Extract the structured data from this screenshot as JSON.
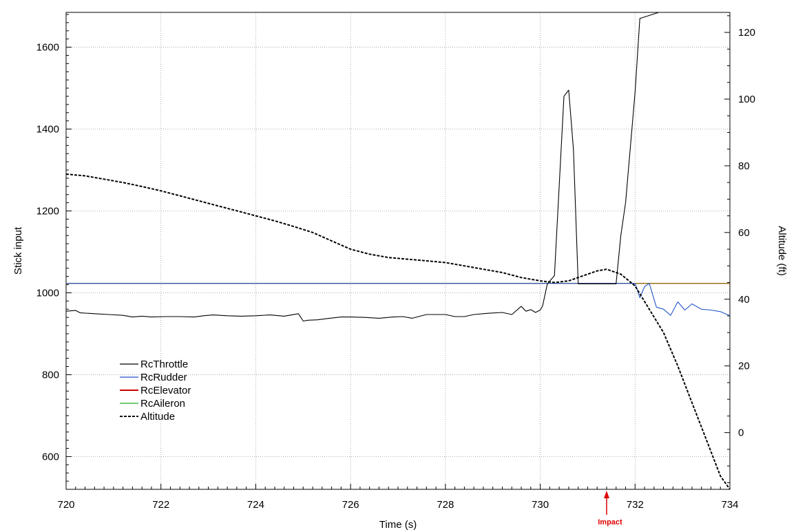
{
  "chart_data": {
    "type": "line",
    "x_axis": {
      "label": "Time (s)",
      "range": [
        720,
        734
      ],
      "ticks": [
        720,
        722,
        724,
        726,
        728,
        730,
        732,
        734
      ],
      "tick_labels": [
        "720",
        "722",
        "724",
        "726",
        "728",
        "730",
        "732",
        "734"
      ]
    },
    "y_left": {
      "label": "Stick input",
      "range": [
        520,
        1685
      ],
      "ticks": [
        600,
        800,
        1000,
        1200,
        1400,
        1600
      ],
      "tick_labels": [
        "600",
        "800",
        "1000",
        "1200",
        "1400",
        "1600"
      ]
    },
    "y_right": {
      "label": "Altitude (ft)",
      "range": [
        -17,
        126
      ],
      "ticks": [
        0,
        20,
        40,
        60,
        80,
        100,
        120
      ],
      "tick_labels": [
        "0",
        "20",
        "40",
        "60",
        "80",
        "100",
        "120"
      ]
    },
    "grid": true,
    "legend_position": "bottom-left",
    "series": [
      {
        "name": "RcThrottle",
        "axis": "left",
        "color": "#000000",
        "style": "solid",
        "x": [
          720.0,
          720.2,
          720.3,
          720.6,
          720.9,
          721.2,
          721.4,
          721.6,
          721.8,
          722.1,
          722.4,
          722.7,
          722.9,
          723.1,
          723.4,
          723.7,
          724.0,
          724.3,
          724.6,
          724.9,
          725.0,
          725.1,
          725.3,
          725.5,
          725.8,
          726.0,
          726.3,
          726.6,
          726.9,
          727.1,
          727.3,
          727.6,
          727.8,
          728.0,
          728.2,
          728.4,
          728.6,
          728.9,
          729.2,
          729.4,
          729.6,
          729.7,
          729.8,
          729.9,
          730.0,
          730.05,
          730.15,
          730.3,
          730.5,
          730.6,
          730.7,
          730.8,
          730.9,
          731.0,
          731.2,
          731.4,
          731.6,
          731.7,
          731.8,
          732.0,
          732.1,
          732.5,
          733.0,
          733.5,
          734.0
        ],
        "values": [
          955,
          957,
          951,
          949,
          947,
          945,
          941,
          943,
          941,
          942,
          942,
          941,
          944,
          946,
          944,
          943,
          944,
          946,
          943,
          949,
          931,
          933,
          934,
          937,
          941,
          941,
          940,
          938,
          941,
          942,
          938,
          947,
          947,
          947,
          942,
          942,
          947,
          950,
          952,
          947,
          967,
          955,
          959,
          952,
          958,
          968,
          1022,
          1042,
          1480,
          1495,
          1350,
          1022,
          1022,
          1022,
          1022,
          1022,
          1022,
          1140,
          1220,
          1490,
          1670,
          1685,
          1685,
          1685,
          1685
        ]
      },
      {
        "name": "RcRudder",
        "axis": "left",
        "color": "#2255cc",
        "style": "solid",
        "x": [
          720.0,
          732.0,
          732.1,
          732.2,
          732.3,
          732.45,
          732.6,
          732.75,
          732.9,
          733.05,
          733.2,
          733.4,
          733.6,
          733.8,
          734.0
        ],
        "values": [
          1023,
          1023,
          988,
          1015,
          1023,
          965,
          960,
          945,
          978,
          958,
          973,
          960,
          958,
          954,
          944
        ]
      },
      {
        "name": "RcElevator",
        "axis": "left",
        "color": "#cc0000",
        "style": "solid",
        "x": [
          720.0,
          734.0
        ],
        "values": [
          1023,
          1023
        ]
      },
      {
        "name": "RcAileron",
        "axis": "left",
        "color": "#22aa22",
        "style": "solid",
        "x": [
          720.0,
          734.0
        ],
        "values": [
          1023,
          1023
        ]
      },
      {
        "name": "Altitude",
        "axis": "right",
        "color": "#000000",
        "style": "dashed",
        "x": [
          720.0,
          720.4,
          720.8,
          721.2,
          721.6,
          722.0,
          722.4,
          722.8,
          723.2,
          723.6,
          724.0,
          724.4,
          724.8,
          725.2,
          725.6,
          726.0,
          726.4,
          726.8,
          727.2,
          727.6,
          728.0,
          728.4,
          728.8,
          729.2,
          729.6,
          730.0,
          730.3,
          730.6,
          730.9,
          731.2,
          731.4,
          731.7,
          732.0,
          732.3,
          732.6,
          732.9,
          733.2,
          733.5,
          733.8,
          734.0
        ],
        "values": [
          77.5,
          77.0,
          76.0,
          75.0,
          73.8,
          72.5,
          71.0,
          69.5,
          68.0,
          66.5,
          65.0,
          63.5,
          61.8,
          60.0,
          57.5,
          55.0,
          53.5,
          52.5,
          52.0,
          51.5,
          51.0,
          50.0,
          49.0,
          48.0,
          46.5,
          45.5,
          45.0,
          45.5,
          47.0,
          48.5,
          49.0,
          47.5,
          44.0,
          37.0,
          30.0,
          20.0,
          9.0,
          -2.0,
          -13.0,
          -17.0
        ]
      }
    ],
    "annotation": {
      "text": "Impact",
      "x": 731.4,
      "color": "#dd0000"
    }
  }
}
